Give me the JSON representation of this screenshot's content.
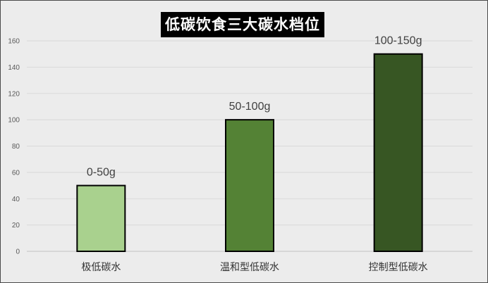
{
  "chart_data": {
    "type": "bar",
    "title": "低碳饮食三大碳水档位",
    "xlabel": "",
    "ylabel": "",
    "categories": [
      "极低碳水",
      "温和型低碳水",
      "控制型低碳水"
    ],
    "values": [
      50,
      100,
      150
    ],
    "data_labels": [
      "0-50g",
      "50-100g",
      "100-150g"
    ],
    "bar_colors": [
      "#a9d18e",
      "#548235",
      "#375623"
    ],
    "yticks": [
      "0",
      "20",
      "40",
      "60",
      "80",
      "100",
      "120",
      "140",
      "160"
    ],
    "ylim": [
      0,
      160
    ],
    "grid": true,
    "legend": "none"
  }
}
